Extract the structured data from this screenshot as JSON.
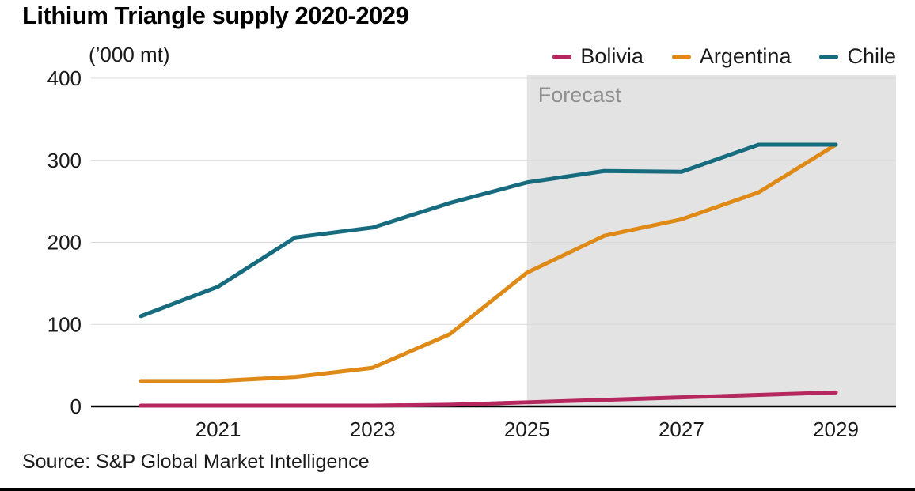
{
  "title": "Lithium Triangle supply 2020-2029",
  "unit_label": "(’000 mt)",
  "source": "Source: S&P Global Market Intelligence",
  "chart_data": {
    "type": "line",
    "title": "Lithium Triangle supply 2020-2029",
    "ylabel": "(’000 mt)",
    "x": [
      2020,
      2021,
      2022,
      2023,
      2024,
      2025,
      2026,
      2027,
      2028,
      2029
    ],
    "x_tick_labels": [
      2021,
      2023,
      2025,
      2027,
      2029
    ],
    "y_ticks": [
      0,
      100,
      200,
      300,
      400
    ],
    "ylim": [
      0,
      400
    ],
    "grid": "horizontal",
    "legend_position": "top-right",
    "forecast_start": 2025,
    "forecast_label": "Forecast",
    "forecast_band_color": "#e3e3e4",
    "series": [
      {
        "name": "Bolivia",
        "color": "#b5275e",
        "values": [
          1,
          1,
          1,
          1,
          2,
          5,
          8,
          11,
          14,
          17
        ]
      },
      {
        "name": "Argentina",
        "color": "#df8a17",
        "values": [
          31,
          31,
          36,
          47,
          88,
          163,
          208,
          228,
          261,
          319
        ]
      },
      {
        "name": "Chile",
        "color": "#176b7e",
        "values": [
          110,
          146,
          206,
          218,
          248,
          273,
          287,
          286,
          319,
          319
        ]
      }
    ]
  }
}
